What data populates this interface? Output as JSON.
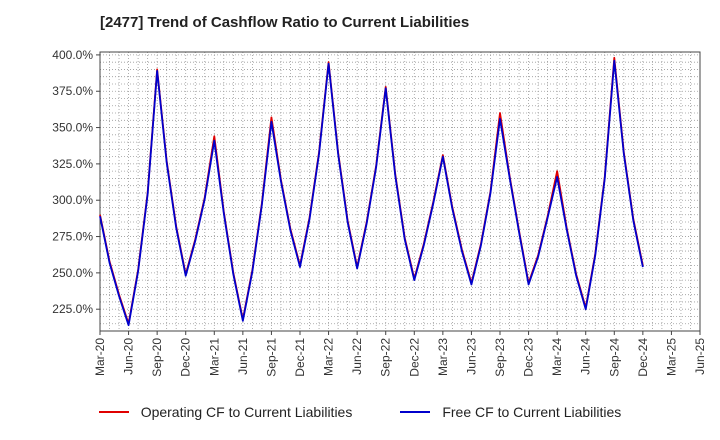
{
  "chart_data": {
    "type": "line",
    "title": "[2477]  Trend of Cashflow Ratio to Current Liabilities",
    "xlabel": "",
    "ylabel": "",
    "ylim": [
      210,
      402
    ],
    "yticks": [
      225,
      250,
      275,
      300,
      325,
      350,
      375,
      400
    ],
    "ytick_labels": [
      "225.0%",
      "250.0%",
      "275.0%",
      "300.0%",
      "325.0%",
      "350.0%",
      "375.0%",
      "400.0%"
    ],
    "xtick_labels": [
      "Mar-20",
      "Jun-20",
      "Sep-20",
      "Dec-20",
      "Mar-21",
      "Jun-21",
      "Sep-21",
      "Dec-21",
      "Mar-22",
      "Jun-22",
      "Sep-22",
      "Dec-22",
      "Mar-23",
      "Jun-23",
      "Sep-23",
      "Dec-23",
      "Mar-24",
      "Jun-24",
      "Sep-24",
      "Dec-24",
      "Mar-25",
      "Jun-25"
    ],
    "x": [
      "Mar-20",
      "Apr-20",
      "May-20",
      "Jun-20",
      "Jul-20",
      "Aug-20",
      "Sep-20",
      "Oct-20",
      "Nov-20",
      "Dec-20",
      "Jan-21",
      "Feb-21",
      "Mar-21",
      "Apr-21",
      "May-21",
      "Jun-21",
      "Jul-21",
      "Aug-21",
      "Sep-21",
      "Oct-21",
      "Nov-21",
      "Dec-21",
      "Jan-22",
      "Feb-22",
      "Mar-22",
      "Apr-22",
      "May-22",
      "Jun-22",
      "Jul-22",
      "Aug-22",
      "Sep-22",
      "Oct-22",
      "Nov-22",
      "Dec-22",
      "Jan-23",
      "Feb-23",
      "Mar-23",
      "Apr-23",
      "May-23",
      "Jun-23",
      "Jul-23",
      "Aug-23",
      "Sep-23",
      "Oct-23",
      "Nov-23",
      "Dec-23",
      "Jan-24",
      "Feb-24",
      "Mar-24",
      "Apr-24",
      "May-24",
      "Jun-24",
      "Jul-24",
      "Aug-24",
      "Sep-24",
      "Oct-24",
      "Nov-24",
      "Dec-24"
    ],
    "grid": true,
    "legend_position": "bottom",
    "series": [
      {
        "name": "Operating CF to Current Liabilities",
        "color": "#e00000",
        "values": [
          290,
          258,
          235,
          215,
          252,
          305,
          390,
          327,
          282,
          249,
          273,
          302,
          344,
          292,
          250,
          218,
          252,
          298,
          357,
          314,
          280,
          255,
          288,
          333,
          395,
          333,
          286,
          254,
          285,
          324,
          378,
          318,
          274,
          246,
          270,
          299,
          331,
          295,
          266,
          243,
          270,
          306,
          360,
          317,
          279,
          243,
          262,
          289,
          320,
          281,
          249,
          226,
          263,
          316,
          398,
          333,
          287,
          255
        ]
      },
      {
        "name": "Free CF to Current Liabilities",
        "color": "#0000cc",
        "values": [
          289,
          257,
          234,
          214,
          251,
          304,
          389,
          326,
          281,
          248,
          272,
          301,
          341,
          291,
          249,
          217,
          251,
          297,
          354,
          313,
          279,
          254,
          287,
          332,
          394,
          332,
          285,
          253,
          284,
          323,
          377,
          317,
          273,
          245,
          269,
          298,
          330,
          294,
          265,
          242,
          269,
          305,
          356,
          316,
          278,
          242,
          261,
          288,
          316,
          280,
          248,
          225,
          262,
          315,
          396,
          332,
          286,
          254
        ]
      }
    ]
  }
}
